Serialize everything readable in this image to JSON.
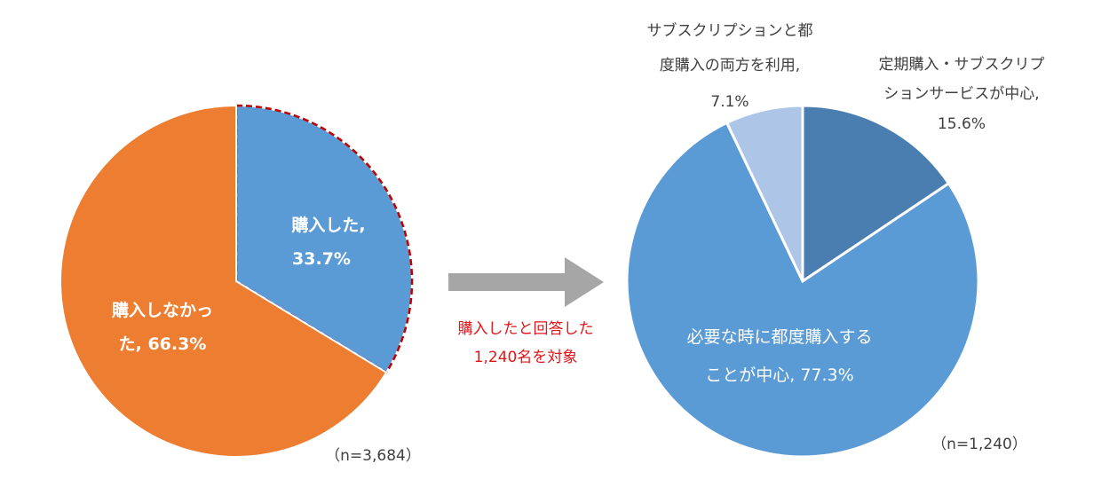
{
  "chart_data": [
    {
      "type": "pie",
      "slices": [
        {
          "label": "購入した,",
          "value_label": "33.7%",
          "value": 33.7,
          "color": "#5b9bd5"
        },
        {
          "label": "購入しなかっ",
          "label2": "た, 66.3%",
          "value": 66.3,
          "color": "#ed7d31"
        }
      ],
      "sample_size": "（n=3,684）"
    },
    {
      "type": "pie",
      "slices": [
        {
          "label": "定期購入・サブスクリプ",
          "label2": "ションサービスが中心,",
          "value_label": "15.6%",
          "value": 15.6,
          "color": "#4a7eb0"
        },
        {
          "label": "必要な時に都度購入する",
          "label2": "ことが中心, 77.3%",
          "value": 77.3,
          "color": "#5b9bd5"
        },
        {
          "label": "サブスクリプションと都",
          "label2": "度購入の両方を利用,",
          "value_label": "7.1%",
          "value": 7.1,
          "color": "#adc6e7"
        }
      ],
      "sample_size": "（n=1,240）"
    }
  ],
  "arrow_note": {
    "line1": "購入したと回答した",
    "line2": "1,240名を対象",
    "color": "#e0161b"
  },
  "colors": {
    "arrow": "#a6a6a6",
    "highlight_dash": "#c00000"
  }
}
